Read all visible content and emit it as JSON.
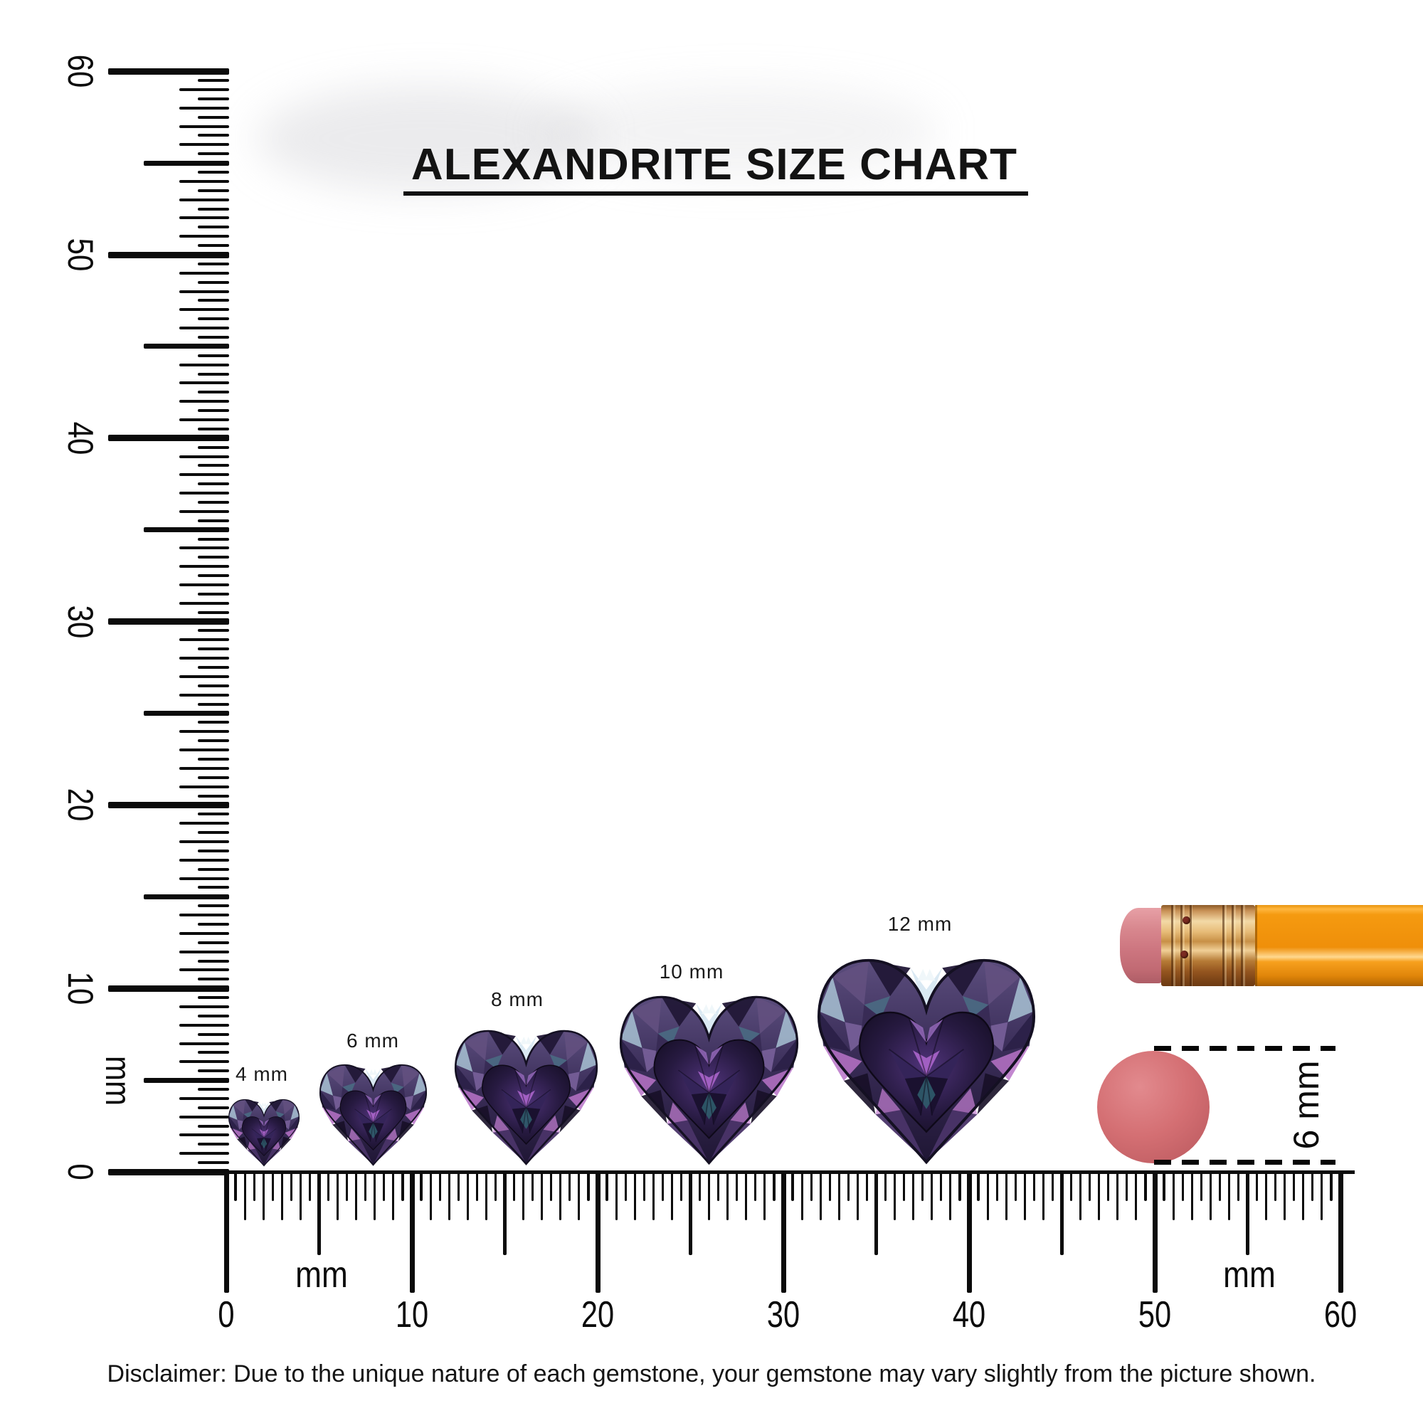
{
  "title": {
    "text": "ALEXANDRITE SIZE CHART"
  },
  "gems": [
    {
      "label": "4 mm",
      "size_mm": 4
    },
    {
      "label": "6 mm",
      "size_mm": 6
    },
    {
      "label": "8 mm",
      "size_mm": 8
    },
    {
      "label": "10 mm",
      "size_mm": 10
    },
    {
      "label": "12 mm",
      "size_mm": 12
    }
  ],
  "vertical_ruler": {
    "unit": "mm",
    "tick_labels": [
      "0",
      "10",
      "20",
      "30",
      "40",
      "50",
      "60"
    ]
  },
  "horizontal_ruler": {
    "unit_left": "mm",
    "unit_right": "mm",
    "tick_labels": [
      "0",
      "10",
      "20",
      "30",
      "40",
      "50",
      "60"
    ]
  },
  "eraser_reference": {
    "label": "6 mm"
  },
  "disclaimer": {
    "text": "Disclaimer: Due to the unique nature of each gemstone, your gemstone may vary slightly from the picture shown."
  },
  "colors": {
    "ink": "#0b0b0b",
    "gem_dark": "#221837",
    "gem_violet": "#7b639e",
    "gem_pink": "#b873c8",
    "gem_ice": "#d8e8f2",
    "eraser_disc": "#d46f73",
    "pencil_body": "#f7a01e",
    "pencil_ferrule": "#e7bc78",
    "pencil_eraser": "#cd7680"
  },
  "chart_data": {
    "type": "table",
    "title": "ALEXANDRITE SIZE CHART",
    "categories": [
      "4 mm",
      "6 mm",
      "8 mm",
      "10 mm",
      "12 mm"
    ],
    "values": [
      4,
      6,
      8,
      10,
      12
    ],
    "units": "mm",
    "xlabel": "mm",
    "ylabel": "mm",
    "axis_range_mm": [
      0,
      60
    ],
    "reference_objects": [
      {
        "name": "pencil eraser diameter",
        "value_mm": 6
      }
    ]
  }
}
